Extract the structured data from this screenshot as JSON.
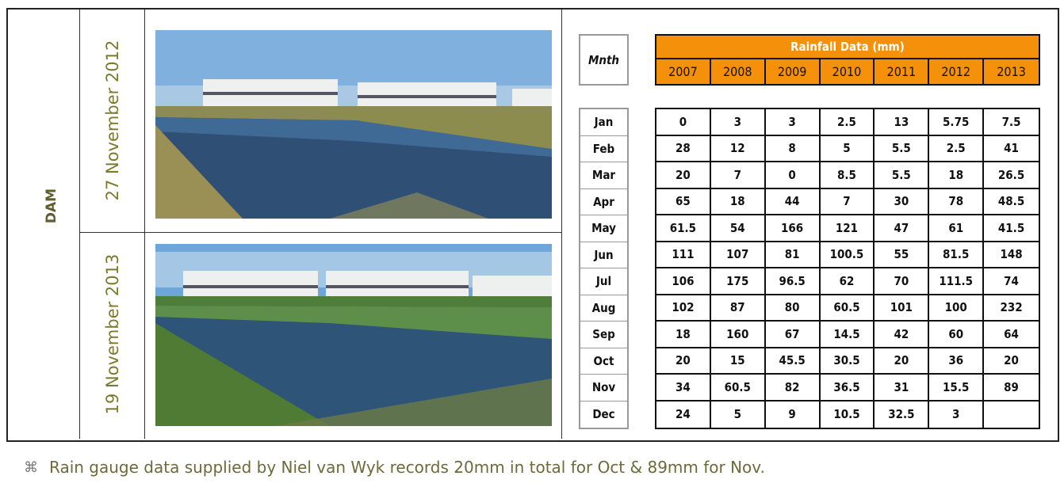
{
  "label": "DAM",
  "photos": [
    {
      "date": "27 November 2012"
    },
    {
      "date": "19 November 2013"
    }
  ],
  "table": {
    "month_header": "Mnth",
    "title": "Rainfall Data (mm)",
    "years": [
      "2007",
      "2008",
      "2009",
      "2010",
      "2011",
      "2012",
      "2013"
    ],
    "rows": [
      {
        "month": "Jan",
        "values": [
          0,
          3,
          3,
          2.5,
          13,
          5.75,
          7.5
        ]
      },
      {
        "month": "Feb",
        "values": [
          28,
          12,
          8,
          5,
          5.5,
          2.5,
          41
        ]
      },
      {
        "month": "Mar",
        "values": [
          20,
          7,
          0,
          8.5,
          5.5,
          18,
          26.5
        ]
      },
      {
        "month": "Apr",
        "values": [
          65,
          18,
          44,
          7,
          30,
          78,
          48.5
        ]
      },
      {
        "month": "May",
        "values": [
          61.5,
          54,
          166,
          121,
          47,
          61,
          41.5
        ]
      },
      {
        "month": "Jun",
        "values": [
          111,
          107,
          81,
          100.5,
          55,
          81.5,
          148
        ]
      },
      {
        "month": "Jul",
        "values": [
          106,
          175,
          96.5,
          62,
          70,
          111.5,
          74
        ]
      },
      {
        "month": "Aug",
        "values": [
          102,
          87,
          80,
          60.5,
          101,
          100,
          232
        ]
      },
      {
        "month": "Sep",
        "values": [
          18,
          160,
          67,
          14.5,
          42,
          60,
          64
        ]
      },
      {
        "month": "Oct",
        "values": [
          20,
          15,
          45.5,
          30.5,
          20,
          36,
          20
        ]
      },
      {
        "month": "Nov",
        "values": [
          34,
          60.5,
          82,
          36.5,
          31,
          15.5,
          89
        ]
      },
      {
        "month": "Dec",
        "values": [
          24,
          5,
          9,
          10.5,
          32.5,
          3,
          null
        ]
      }
    ]
  },
  "footnote": "Rain gauge data supplied by Niel van Wyk records 20mm in total for Oct & 89mm for Nov."
}
